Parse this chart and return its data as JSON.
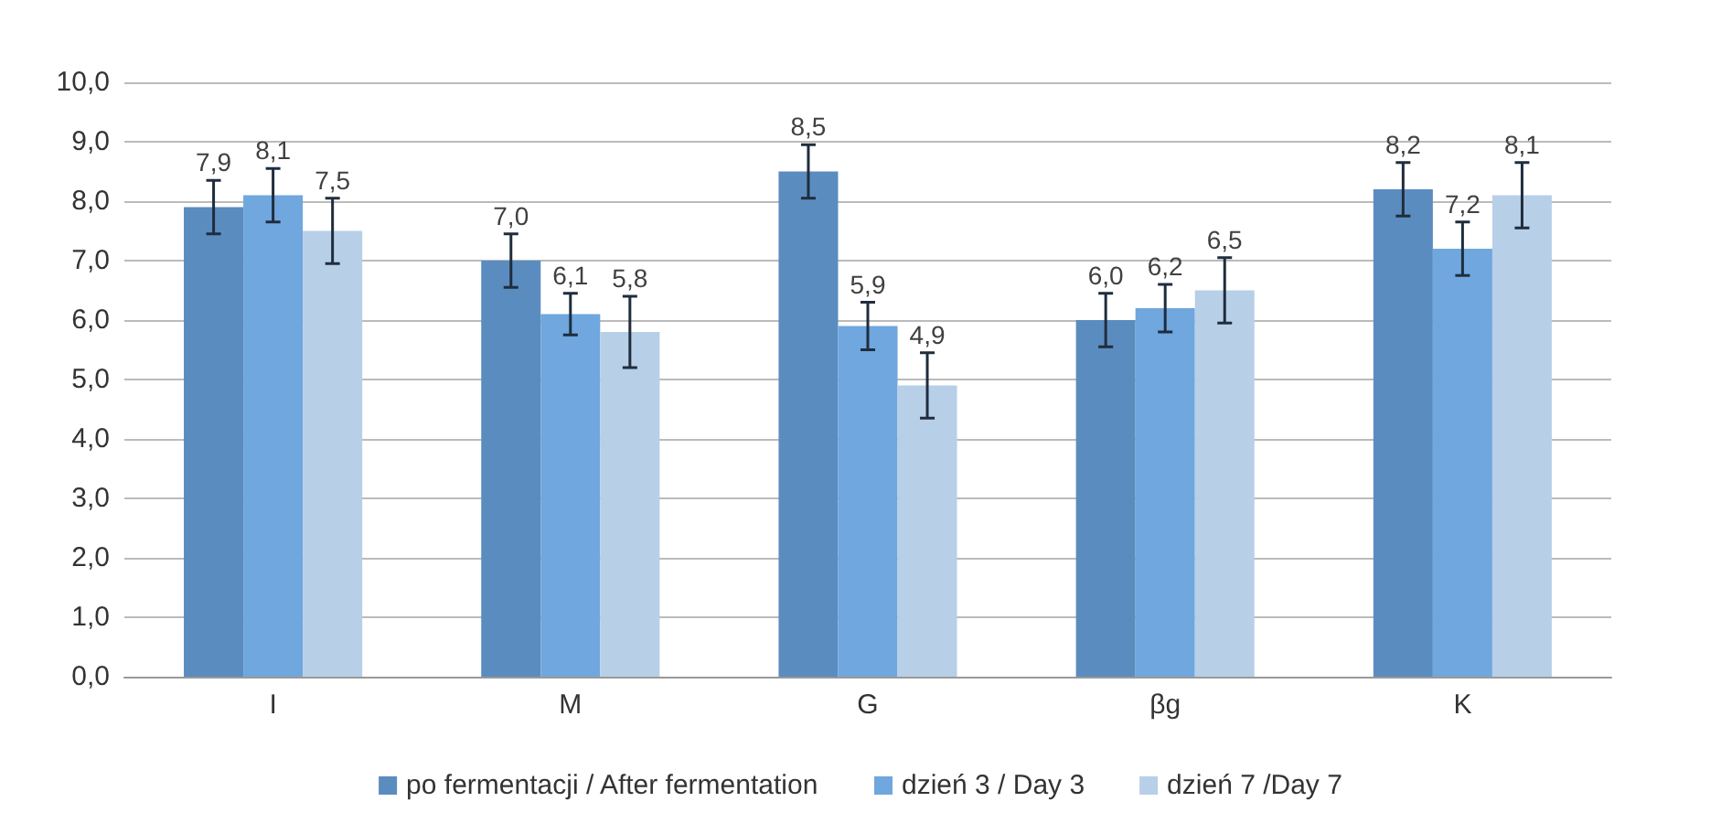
{
  "chart_data": {
    "type": "bar",
    "categories": [
      "I",
      "M",
      "G",
      "βg",
      "K"
    ],
    "series": [
      {
        "name": "po fermentacji / After fermentation",
        "color": "#5b8cc0",
        "values": [
          7.9,
          7.0,
          8.5,
          6.0,
          8.2
        ],
        "errors": [
          0.45,
          0.45,
          0.45,
          0.45,
          0.45
        ],
        "value_labels": [
          "7,9",
          "7,0",
          "8,5",
          "6,0",
          "8,2"
        ]
      },
      {
        "name": "dzień 3 / Day 3",
        "color": "#6fa7de",
        "values": [
          8.1,
          6.1,
          5.9,
          6.2,
          7.2
        ],
        "errors": [
          0.45,
          0.35,
          0.4,
          0.4,
          0.45
        ],
        "value_labels": [
          "8,1",
          "6,1",
          "5,9",
          "6,2",
          "7,2"
        ]
      },
      {
        "name": "dzień 7 /Day 7",
        "color": "#b8cfe8",
        "values": [
          7.5,
          5.8,
          4.9,
          6.5,
          8.1
        ],
        "errors": [
          0.55,
          0.6,
          0.55,
          0.55,
          0.55
        ],
        "value_labels": [
          "7,5",
          "5,8",
          "4,9",
          "6,5",
          "8,1"
        ]
      }
    ],
    "ylim": [
      0,
      10
    ],
    "yticks": [
      {
        "value": 0,
        "label": "0,0"
      },
      {
        "value": 1,
        "label": "1,0"
      },
      {
        "value": 2,
        "label": "2,0"
      },
      {
        "value": 3,
        "label": "3,0"
      },
      {
        "value": 4,
        "label": "4,0"
      },
      {
        "value": 5,
        "label": "5,0"
      },
      {
        "value": 6,
        "label": "6,0"
      },
      {
        "value": 7,
        "label": "7,0"
      },
      {
        "value": 8,
        "label": "8,0"
      },
      {
        "value": 9,
        "label": "9,0"
      },
      {
        "value": 10,
        "label": "10,0"
      }
    ],
    "grid": "y",
    "legend": "bottom"
  }
}
